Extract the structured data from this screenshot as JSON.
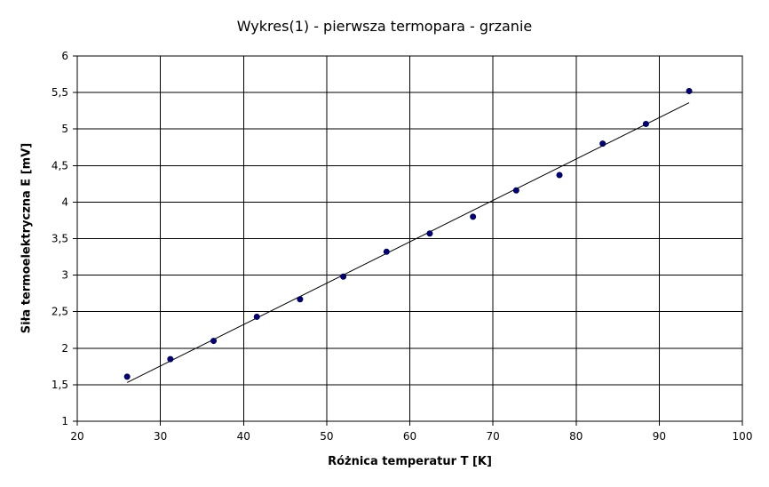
{
  "chart_data": {
    "type": "scatter",
    "title": "Wykres(1) - pierwsza termopara - grzanie",
    "xlabel": "Różnica temperatur T [K]",
    "ylabel": "Siła termoelektryczna E [mV]",
    "xlim": [
      20,
      100
    ],
    "ylim": [
      1,
      6
    ],
    "x_ticks": [
      20,
      30,
      40,
      50,
      60,
      70,
      80,
      90,
      100
    ],
    "x_tick_labels": [
      "20",
      "30",
      "40",
      "50",
      "60",
      "70",
      "80",
      "90",
      "100"
    ],
    "y_ticks": [
      1,
      1.5,
      2,
      2.5,
      3,
      3.5,
      4,
      4.5,
      5,
      5.5,
      6
    ],
    "y_tick_labels": [
      "1",
      "1,5",
      "2",
      "2,5",
      "3",
      "3,5",
      "4",
      "4,5",
      "5",
      "5,5",
      "6"
    ],
    "grid": true,
    "legend": "none",
    "series": [
      {
        "x": [
          26.0,
          31.2,
          36.4,
          41.6,
          46.8,
          52.0,
          57.2,
          62.4,
          67.6,
          72.8,
          78.0,
          83.2,
          88.4,
          93.6
        ],
        "y": [
          1.61,
          1.85,
          2.1,
          2.43,
          2.67,
          2.98,
          3.32,
          3.57,
          3.8,
          4.16,
          4.37,
          4.8,
          5.07,
          5.52
        ],
        "color": "#000080"
      }
    ],
    "trendline": {
      "x": [
        26.0,
        93.6
      ],
      "y": [
        1.53,
        5.36
      ],
      "color": "#000000"
    },
    "colors": {
      "point_fill": "#000080",
      "gridline": "#000000",
      "plot_border": "#000000"
    }
  }
}
